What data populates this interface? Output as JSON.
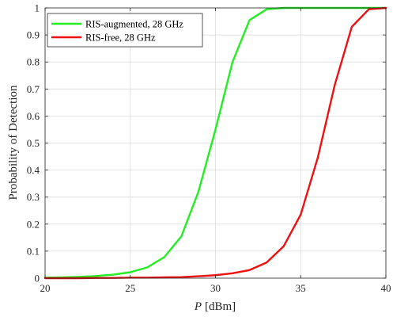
{
  "chart_data": {
    "type": "line",
    "title": "",
    "xlabel_italic": "P",
    "xlabel_unit": "[dBm]",
    "ylabel": "Probability of Detection",
    "xlim": [
      20,
      40
    ],
    "ylim": [
      0,
      1
    ],
    "xticks": [
      20,
      25,
      30,
      35,
      40
    ],
    "yticks": [
      0,
      0.1,
      0.2,
      0.3,
      0.4,
      0.5,
      0.6,
      0.7,
      0.8,
      0.9,
      1
    ],
    "grid": true,
    "legend_position": "top-left",
    "series": [
      {
        "name": "RIS-augmented, 28 GHz",
        "color": "#22ee22",
        "x": [
          20,
          21,
          22,
          23,
          24,
          25,
          26,
          27,
          28,
          29,
          30,
          31,
          32,
          33,
          34,
          35,
          36,
          37,
          38,
          39,
          40
        ],
        "y": [
          0.002,
          0.003,
          0.005,
          0.008,
          0.013,
          0.022,
          0.04,
          0.078,
          0.155,
          0.32,
          0.55,
          0.8,
          0.955,
          0.995,
          1,
          1,
          1,
          1,
          1,
          1,
          1
        ]
      },
      {
        "name": "RIS-free, 28 GHz",
        "color": "#ee1111",
        "x": [
          20,
          21,
          22,
          23,
          24,
          25,
          26,
          27,
          28,
          29,
          30,
          31,
          32,
          33,
          34,
          35,
          36,
          37,
          38,
          39,
          40
        ],
        "y": [
          0,
          0,
          0,
          0.001,
          0.001,
          0.002,
          0.002,
          0.003,
          0.004,
          0.007,
          0.011,
          0.018,
          0.03,
          0.058,
          0.118,
          0.235,
          0.445,
          0.715,
          0.93,
          0.995,
          1
        ]
      }
    ]
  }
}
